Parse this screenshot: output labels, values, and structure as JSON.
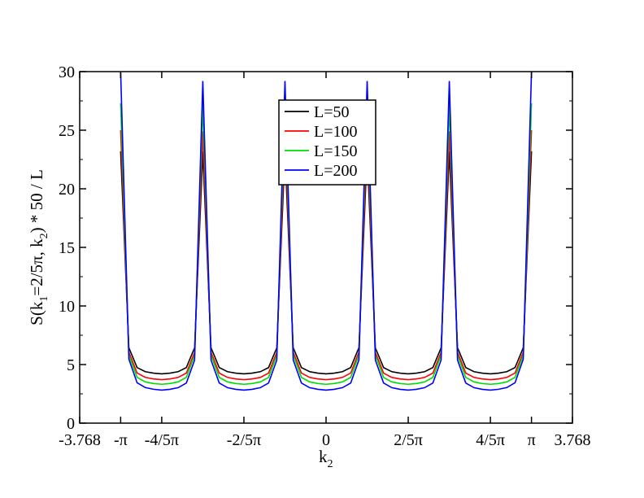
{
  "chart_data": {
    "type": "line",
    "title": "",
    "xlabel_main": "k",
    "xlabel_sub": "2",
    "ylabel_parts": [
      {
        "t": "S(k",
        "sub": false
      },
      {
        "t": "1",
        "sub": true
      },
      {
        "t": "=2/5π, k",
        "sub": false
      },
      {
        "t": "2",
        "sub": true
      },
      {
        "t": ") * 50 / L",
        "sub": false
      }
    ],
    "xlim": [
      -3.768,
      3.768
    ],
    "ylim": [
      0,
      30
    ],
    "x_ticks": [
      {
        "value": -3.768,
        "label": "-3.768"
      },
      {
        "value": -3.14159,
        "label": "-π"
      },
      {
        "value": -2.51327,
        "label": "-4/5π"
      },
      {
        "value": -1.25664,
        "label": "-2/5π"
      },
      {
        "value": 0,
        "label": "0"
      },
      {
        "value": 1.25664,
        "label": "2/5π"
      },
      {
        "value": 2.51327,
        "label": "4/5π"
      },
      {
        "value": 3.14159,
        "label": "π"
      },
      {
        "value": 3.768,
        "label": "3.768"
      }
    ],
    "y_ticks": [
      {
        "value": 0,
        "label": "0"
      },
      {
        "value": 5,
        "label": "5"
      },
      {
        "value": 10,
        "label": "10"
      },
      {
        "value": 15,
        "label": "15"
      },
      {
        "value": 20,
        "label": "20"
      },
      {
        "value": 25,
        "label": "25"
      },
      {
        "value": 30,
        "label": "30"
      }
    ],
    "peak_positions": [
      -1.885,
      -0.628,
      0.628,
      1.885
    ],
    "edge_positions": [
      -3.14159,
      3.14159
    ],
    "legend_position": "top-center",
    "grid": false,
    "series": [
      {
        "name": "L=50",
        "color": "#000000",
        "min": 4.1,
        "peak": 23.2,
        "edge": 23.2,
        "width": 0.3
      },
      {
        "name": "L=100",
        "color": "#ff0000",
        "min": 3.6,
        "peak": 24.9,
        "edge": 25.0,
        "width": 0.29
      },
      {
        "name": "L=150",
        "color": "#00dd00",
        "min": 3.2,
        "peak": 27.2,
        "edge": 27.3,
        "width": 0.28
      },
      {
        "name": "L=200",
        "color": "#0000ff",
        "min": 2.7,
        "peak": 29.2,
        "edge": 30.0,
        "width": 0.27
      }
    ]
  }
}
